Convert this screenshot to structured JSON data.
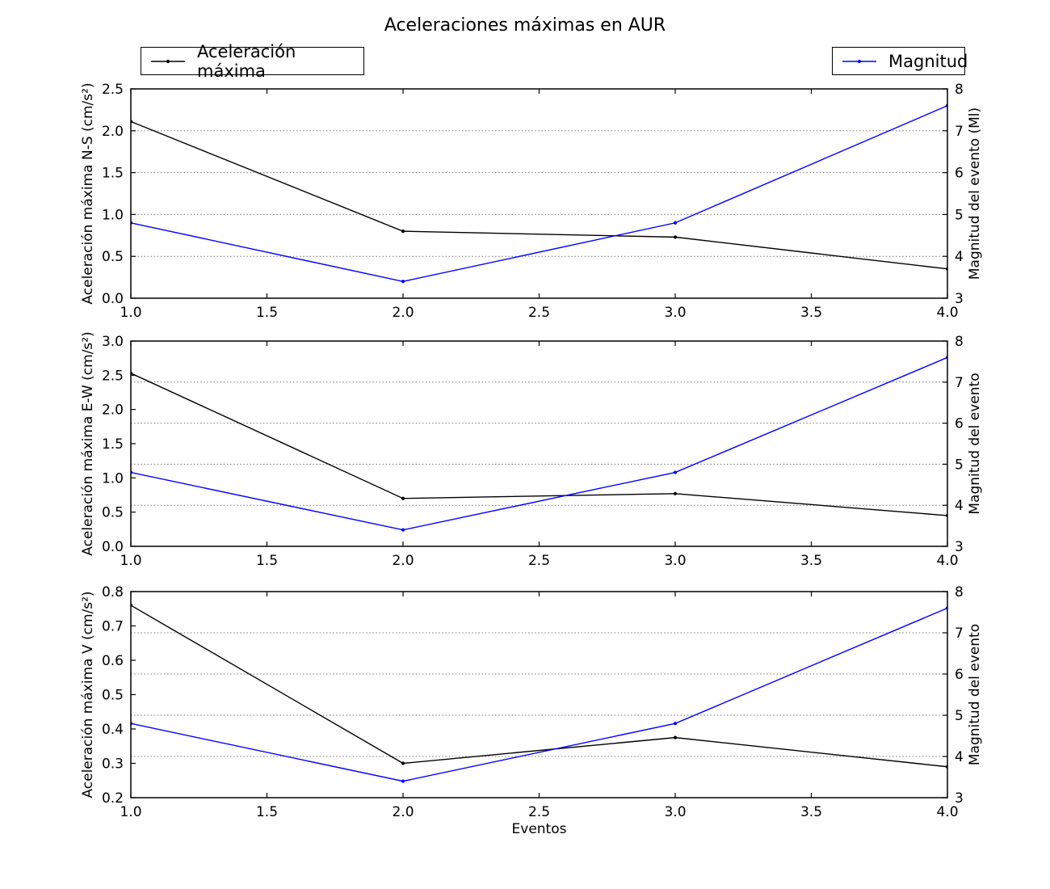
{
  "title": "Aceleraciones máximas en AUR",
  "xlabel": "Eventos",
  "background_color": "#ffffff",
  "legend": [
    {
      "label": "Aceleración máxima",
      "color": "#000000"
    },
    {
      "label": "Magnitud",
      "color": "#0000ff"
    }
  ],
  "chart_data": [
    {
      "type": "line",
      "x": [
        1,
        2,
        3,
        4
      ],
      "xlim": [
        1.0,
        4.0
      ],
      "xticks": [
        "1.0",
        "1.5",
        "2.0",
        "2.5",
        "3.0",
        "3.5",
        "4.0"
      ],
      "ylabel_left": "Aceleración máxima N-S (cm/s²)",
      "ylim_left": [
        0.0,
        2.5
      ],
      "yticks_left": [
        "0.0",
        "0.5",
        "1.0",
        "1.5",
        "2.0",
        "2.5"
      ],
      "ylabel_right": "Magnitud del evento (Ml)",
      "ylim_right": [
        3,
        8
      ],
      "yticks_right": [
        "3",
        "4",
        "5",
        "6",
        "7",
        "8"
      ],
      "grid": "horizontal dotted at right-axis ticks",
      "series": [
        {
          "name": "Aceleración máxima",
          "axis": "left",
          "color": "#000000",
          "values": [
            2.11,
            0.8,
            0.73,
            0.35
          ]
        },
        {
          "name": "Magnitud",
          "axis": "right",
          "color": "#0000ff",
          "values": [
            4.8,
            3.4,
            4.8,
            7.6
          ]
        }
      ]
    },
    {
      "type": "line",
      "x": [
        1,
        2,
        3,
        4
      ],
      "xlim": [
        1.0,
        4.0
      ],
      "xticks": [
        "1.0",
        "1.5",
        "2.0",
        "2.5",
        "3.0",
        "3.5",
        "4.0"
      ],
      "ylabel_left": "Aceleración máxima E-W (cm/s²)",
      "ylim_left": [
        0.0,
        3.0
      ],
      "yticks_left": [
        "0.0",
        "0.5",
        "1.0",
        "1.5",
        "2.0",
        "2.5",
        "3.0"
      ],
      "ylabel_right": "Magnitud del evento",
      "ylim_right": [
        3,
        8
      ],
      "yticks_right": [
        "3",
        "4",
        "5",
        "6",
        "7",
        "8"
      ],
      "grid": "horizontal dotted at right-axis ticks",
      "series": [
        {
          "name": "Aceleración máxima",
          "axis": "left",
          "color": "#000000",
          "values": [
            2.53,
            0.7,
            0.77,
            0.45
          ]
        },
        {
          "name": "Magnitud",
          "axis": "right",
          "color": "#0000ff",
          "values": [
            4.8,
            3.4,
            4.8,
            7.6
          ]
        }
      ]
    },
    {
      "type": "line",
      "x": [
        1,
        2,
        3,
        4
      ],
      "xlim": [
        1.0,
        4.0
      ],
      "xticks": [
        "1.0",
        "1.5",
        "2.0",
        "2.5",
        "3.0",
        "3.5",
        "4.0"
      ],
      "ylabel_left": "Aceleración máxima V (cm/s²)",
      "ylim_left": [
        0.2,
        0.8
      ],
      "yticks_left": [
        "0.2",
        "0.3",
        "0.4",
        "0.5",
        "0.6",
        "0.7",
        "0.8"
      ],
      "ylabel_right": "Magnitud del evento",
      "ylim_right": [
        3,
        8
      ],
      "yticks_right": [
        "3",
        "4",
        "5",
        "6",
        "7",
        "8"
      ],
      "grid": "horizontal dotted at right-axis ticks",
      "series": [
        {
          "name": "Aceleración máxima",
          "axis": "left",
          "color": "#000000",
          "values": [
            0.76,
            0.3,
            0.375,
            0.29
          ]
        },
        {
          "name": "Magnitud",
          "axis": "right",
          "color": "#0000ff",
          "values": [
            4.8,
            3.4,
            4.8,
            7.6
          ]
        }
      ]
    }
  ]
}
